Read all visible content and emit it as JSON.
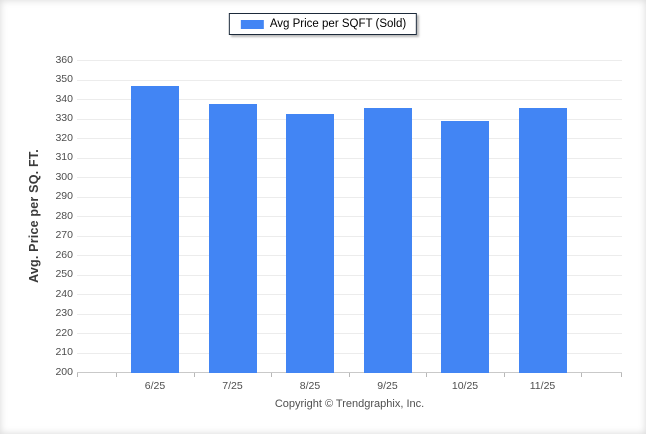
{
  "legend": {
    "label": "Avg Price per SQFT (Sold)",
    "swatch_color": "#4285f4"
  },
  "footer": {
    "copyright": "Copyright © Trendgraphix, Inc."
  },
  "chart_data": {
    "type": "bar",
    "title": "",
    "categories": [
      "6/25",
      "7/25",
      "8/25",
      "9/25",
      "10/25",
      "11/25"
    ],
    "series": [
      {
        "name": "Avg Price per SQFT (Sold)",
        "values": [
          347,
          338,
          333,
          336,
          329,
          336
        ]
      }
    ],
    "xlabel": "",
    "ylabel": "Avg. Price per SQ. FT.",
    "ylim": [
      200,
      360
    ],
    "ytick_step": 10,
    "grid": true,
    "legend_position": "top-center",
    "bar_color": "#4285f4",
    "gridline_color": "#ececec"
  }
}
